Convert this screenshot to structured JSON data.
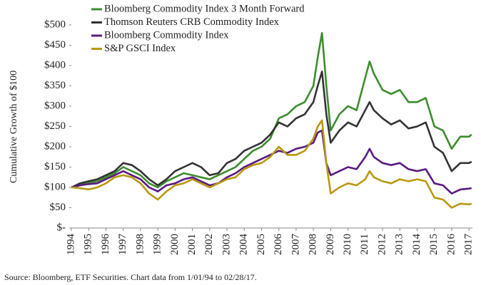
{
  "chart_data": {
    "type": "line",
    "y_label": "Cumulative Growth of $100",
    "source": "Source: Bloomberg, ETF Securities. Chart data from 1/01/94 to 02/28/17.",
    "x": [
      1994,
      1994.5,
      1995,
      1995.5,
      1996,
      1996.5,
      1997,
      1997.5,
      1998,
      1998.5,
      1999,
      1999.5,
      2000,
      2000.5,
      2001,
      2001.5,
      2002,
      2002.5,
      2003,
      2003.5,
      2004,
      2004.5,
      2005,
      2005.5,
      2006,
      2006.5,
      2007,
      2007.5,
      2008,
      2008.25,
      2008.5,
      2008.75,
      2009,
      2009.5,
      2010,
      2010.5,
      2011,
      2011.25,
      2011.5,
      2012,
      2012.5,
      2013,
      2013.5,
      2014,
      2014.5,
      2015,
      2015.5,
      2016,
      2016.5,
      2017,
      2017.15
    ],
    "series": [
      {
        "name": "Bloomberg Commodity Index 3 Month Forward",
        "color": "#3d8c2f",
        "values": [
          100,
          105,
          112,
          115,
          125,
          135,
          150,
          140,
          130,
          110,
          100,
          115,
          125,
          135,
          130,
          125,
          120,
          130,
          140,
          150,
          170,
          190,
          200,
          220,
          270,
          280,
          300,
          310,
          350,
          420,
          480,
          350,
          240,
          280,
          300,
          290,
          370,
          410,
          380,
          340,
          330,
          340,
          310,
          310,
          320,
          250,
          240,
          195,
          225,
          225,
          230
        ]
      },
      {
        "name": "Thomson Reuters CRB Commodity Index",
        "color": "#333333",
        "values": [
          100,
          110,
          115,
          120,
          130,
          140,
          160,
          155,
          140,
          120,
          105,
          120,
          140,
          150,
          160,
          150,
          130,
          135,
          160,
          170,
          190,
          200,
          210,
          230,
          260,
          250,
          270,
          280,
          310,
          350,
          385,
          280,
          210,
          240,
          260,
          250,
          290,
          310,
          290,
          270,
          255,
          265,
          245,
          250,
          260,
          200,
          185,
          140,
          160,
          160,
          163
        ]
      },
      {
        "name": "Bloomberg Commodity Index",
        "color": "#5a1a82",
        "values": [
          100,
          105,
          108,
          110,
          120,
          130,
          140,
          130,
          120,
          100,
          90,
          105,
          110,
          120,
          125,
          115,
          105,
          110,
          125,
          135,
          150,
          160,
          170,
          180,
          190,
          185,
          195,
          200,
          210,
          235,
          240,
          160,
          130,
          140,
          150,
          145,
          175,
          195,
          175,
          160,
          155,
          160,
          145,
          140,
          145,
          110,
          105,
          85,
          95,
          97,
          98
        ]
      },
      {
        "name": "S&P GSCI Index",
        "color": "#b8980f",
        "values": [
          100,
          98,
          95,
          100,
          110,
          125,
          130,
          125,
          110,
          85,
          70,
          90,
          105,
          110,
          120,
          110,
          100,
          110,
          120,
          125,
          145,
          155,
          160,
          175,
          200,
          180,
          180,
          190,
          220,
          250,
          265,
          160,
          85,
          100,
          110,
          105,
          120,
          140,
          125,
          115,
          110,
          120,
          115,
          120,
          115,
          75,
          70,
          50,
          60,
          58,
          60
        ]
      }
    ],
    "xlim": [
      1994,
      2017.2
    ],
    "xticks": [
      1994,
      1995,
      1996,
      1997,
      1998,
      1999,
      2000,
      2001,
      2002,
      2003,
      2004,
      2005,
      2006,
      2007,
      2008,
      2009,
      2010,
      2011,
      2012,
      2013,
      2014,
      2015,
      2016,
      2017
    ],
    "ylim": [
      0,
      500
    ],
    "yticks": [
      {
        "value": 0,
        "label": "$-"
      },
      {
        "value": 50,
        "label": "$50"
      },
      {
        "value": 100,
        "label": "$100"
      },
      {
        "value": 150,
        "label": "$150"
      },
      {
        "value": 200,
        "label": "$200"
      },
      {
        "value": 250,
        "label": "$250"
      },
      {
        "value": 300,
        "label": "$300"
      },
      {
        "value": 350,
        "label": "$350"
      },
      {
        "value": 400,
        "label": "$400"
      },
      {
        "value": 450,
        "label": "$450"
      },
      {
        "value": 500,
        "label": "$500"
      }
    ],
    "grid": false
  }
}
